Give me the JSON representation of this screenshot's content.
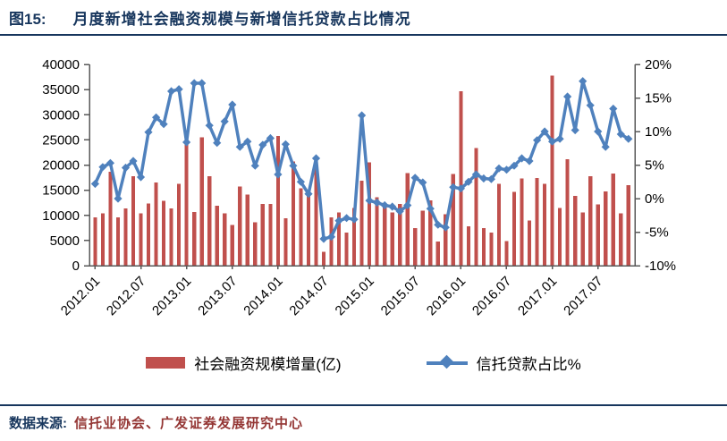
{
  "header": {
    "figure_label": "图15:",
    "title": "月度新增社会融资规模与新增信托贷款占比情况"
  },
  "legend": [
    {
      "label": "社会融资规模增量(亿)",
      "type": "bar",
      "color": "#C0504D"
    },
    {
      "label": "信托贷款占比%",
      "type": "line",
      "color": "#4F81BD"
    }
  ],
  "footer": {
    "label": "数据来源:",
    "source": "信托业协会、广发证券发展研究中心"
  },
  "colors": {
    "bar": "#C0504D",
    "line": "#4F81BD",
    "title": "#17365D",
    "source_text": "#943634",
    "axis": "#595959",
    "tick_text": "#000000"
  },
  "chart_data": {
    "type": "bar",
    "subtype": "combo-bar-line-dual-axis",
    "grid": false,
    "legend_position": "bottom",
    "categories": [
      "2012.01",
      "2012.02",
      "2012.03",
      "2012.04",
      "2012.05",
      "2012.06",
      "2012.07",
      "2012.08",
      "2012.09",
      "2012.10",
      "2012.11",
      "2012.12",
      "2013.01",
      "2013.02",
      "2013.03",
      "2013.04",
      "2013.05",
      "2013.06",
      "2013.07",
      "2013.08",
      "2013.09",
      "2013.10",
      "2013.11",
      "2013.12",
      "2014.01",
      "2014.02",
      "2014.03",
      "2014.04",
      "2014.05",
      "2014.06",
      "2014.07",
      "2014.08",
      "2014.09",
      "2014.10",
      "2014.11",
      "2014.12",
      "2015.01",
      "2015.02",
      "2015.03",
      "2015.04",
      "2015.05",
      "2015.06",
      "2015.07",
      "2015.08",
      "2015.09",
      "2015.10",
      "2015.11",
      "2015.12",
      "2016.01",
      "2016.02",
      "2016.03",
      "2016.04",
      "2016.05",
      "2016.06",
      "2016.07",
      "2016.08",
      "2016.09",
      "2016.10",
      "2016.11",
      "2016.12",
      "2017.01",
      "2017.02",
      "2017.03",
      "2017.04",
      "2017.05",
      "2017.06",
      "2017.07",
      "2017.08",
      "2017.09",
      "2017.10",
      "2017.11"
    ],
    "series": [
      {
        "name": "社会融资规模增量(亿)",
        "type": "bar",
        "axis": "left",
        "color": "#C0504D",
        "values": [
          9600,
          10400,
          18700,
          9600,
          11400,
          17800,
          10400,
          12400,
          16500,
          12900,
          11400,
          16300,
          25400,
          10700,
          25500,
          17800,
          11900,
          10400,
          8100,
          15700,
          14100,
          8600,
          12300,
          12300,
          25800,
          9400,
          20700,
          15400,
          14000,
          19700,
          2800,
          9600,
          10600,
          6600,
          11500,
          16900,
          20500,
          13600,
          12400,
          10600,
          12300,
          18400,
          7500,
          10900,
          13000,
          4800,
          10200,
          18200,
          34700,
          7800,
          23400,
          7500,
          6600,
          16300,
          4900,
          14700,
          17300,
          9000,
          17400,
          16300,
          37800,
          11500,
          21200,
          13900,
          10600,
          17800,
          12200,
          14800,
          18300,
          10400,
          16000
        ]
      },
      {
        "name": "信托贷款占比%",
        "type": "line",
        "axis": "right",
        "color": "#4F81BD",
        "marker": "diamond",
        "values": [
          2.2,
          4.7,
          5.3,
          0.0,
          4.6,
          5.6,
          3.2,
          9.9,
          12.1,
          11.1,
          16.0,
          16.3,
          8.4,
          17.2,
          17.2,
          10.9,
          8.3,
          11.5,
          14.0,
          7.7,
          8.5,
          4.9,
          8.0,
          9.0,
          3.6,
          8.1,
          4.9,
          2.5,
          0.7,
          6.0,
          -6.0,
          -5.7,
          -3.3,
          -2.9,
          -3.1,
          12.4,
          -0.3,
          -0.6,
          -1.0,
          -1.2,
          -1.9,
          -1.0,
          3.1,
          2.4,
          -1.5,
          -3.9,
          -4.3,
          1.7,
          1.5,
          2.5,
          3.6,
          3.0,
          2.9,
          4.5,
          4.3,
          4.9,
          6.0,
          5.6,
          8.7,
          10.0,
          8.5,
          8.9,
          15.2,
          10.2,
          17.5,
          13.9,
          10.0,
          7.7,
          13.4,
          9.6,
          8.9
        ]
      }
    ],
    "left_axis": {
      "min": 0,
      "max": 40000,
      "step": 5000,
      "tick_labels": [
        "0",
        "5000",
        "10000",
        "15000",
        "20000",
        "25000",
        "30000",
        "35000",
        "40000"
      ]
    },
    "right_axis": {
      "min": -10,
      "max": 20,
      "step": 5,
      "tick_labels": [
        "-10%",
        "-5%",
        "0%",
        "5%",
        "10%",
        "15%",
        "20%"
      ]
    },
    "x_tick_every": 6,
    "x_tick_labels": [
      "2012.01",
      "2012.07",
      "2013.01",
      "2013.07",
      "2014.01",
      "2014.07",
      "2015.01",
      "2015.07",
      "2016.01",
      "2016.07",
      "2017.01",
      "2017.07"
    ]
  }
}
